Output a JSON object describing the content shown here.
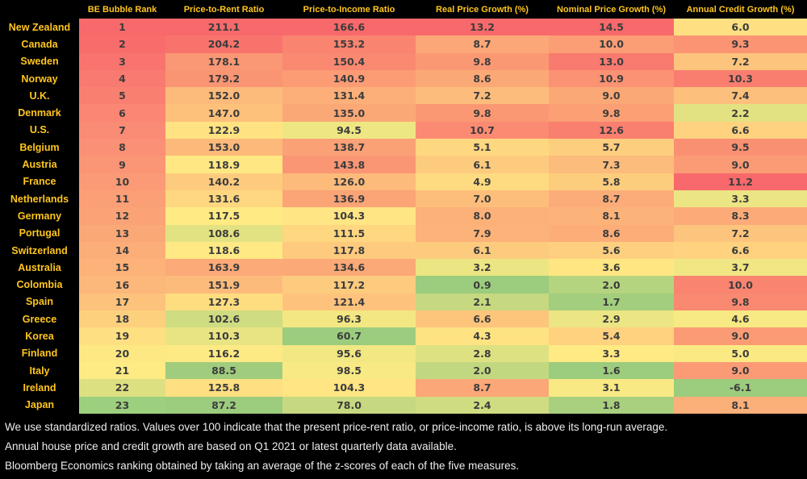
{
  "colors": {
    "background": "#000000",
    "label_yellow": "#FFC61E",
    "value_text": "#3C3C3C",
    "footer_text": "#EDEDED"
  },
  "chart_data": {
    "type": "heatmap",
    "title": "",
    "legend_position": "none",
    "grid": false,
    "columns": [
      "BE Bubble Rank",
      "Price-to-Rent Ratio",
      "Price-to-Income Ratio",
      "Real Price Growth (%)",
      "Nominal Price Growth (%)",
      "Annual Credit Growth (%)"
    ],
    "rows": [
      {
        "country": "New Zealand",
        "rank": 1,
        "values": [
          211.1,
          166.6,
          13.2,
          14.5,
          6.0
        ]
      },
      {
        "country": "Canada",
        "rank": 2,
        "values": [
          204.2,
          153.2,
          8.7,
          10.0,
          9.3
        ]
      },
      {
        "country": "Sweden",
        "rank": 3,
        "values": [
          178.1,
          150.4,
          9.8,
          13.0,
          7.2
        ]
      },
      {
        "country": "Norway",
        "rank": 4,
        "values": [
          179.2,
          140.9,
          8.6,
          10.9,
          10.3
        ]
      },
      {
        "country": "U.K.",
        "rank": 5,
        "values": [
          152.0,
          131.4,
          7.2,
          9.0,
          7.4
        ]
      },
      {
        "country": "Denmark",
        "rank": 6,
        "values": [
          147.0,
          135.0,
          9.8,
          9.8,
          2.2
        ]
      },
      {
        "country": "U.S.",
        "rank": 7,
        "values": [
          122.9,
          94.5,
          10.7,
          12.6,
          6.6
        ]
      },
      {
        "country": "Belgium",
        "rank": 8,
        "values": [
          153.0,
          138.7,
          5.1,
          5.7,
          9.5
        ]
      },
      {
        "country": "Austria",
        "rank": 9,
        "values": [
          118.9,
          143.8,
          6.1,
          7.3,
          9.0
        ]
      },
      {
        "country": "France",
        "rank": 10,
        "values": [
          140.2,
          126.0,
          4.9,
          5.8,
          11.2
        ]
      },
      {
        "country": "Netherlands",
        "rank": 11,
        "values": [
          131.6,
          136.9,
          7.0,
          8.7,
          3.3
        ]
      },
      {
        "country": "Germany",
        "rank": 12,
        "values": [
          117.5,
          104.3,
          8.0,
          8.1,
          8.3
        ]
      },
      {
        "country": "Portugal",
        "rank": 13,
        "values": [
          108.6,
          111.5,
          7.9,
          8.6,
          7.2
        ]
      },
      {
        "country": "Switzerland",
        "rank": 14,
        "values": [
          118.6,
          117.8,
          6.1,
          5.6,
          6.6
        ]
      },
      {
        "country": "Australia",
        "rank": 15,
        "values": [
          163.9,
          134.6,
          3.2,
          3.6,
          3.7
        ]
      },
      {
        "country": "Colombia",
        "rank": 16,
        "values": [
          151.9,
          117.2,
          0.9,
          2.0,
          10.0
        ]
      },
      {
        "country": "Spain",
        "rank": 17,
        "values": [
          127.3,
          121.4,
          2.1,
          1.7,
          9.8
        ]
      },
      {
        "country": "Greece",
        "rank": 18,
        "values": [
          102.6,
          96.3,
          6.6,
          2.9,
          4.6
        ]
      },
      {
        "country": "Korea",
        "rank": 19,
        "values": [
          110.3,
          60.7,
          4.3,
          5.4,
          9.0
        ]
      },
      {
        "country": "Finland",
        "rank": 20,
        "values": [
          116.2,
          95.6,
          2.8,
          3.3,
          5.0
        ]
      },
      {
        "country": "Italy",
        "rank": 21,
        "values": [
          88.5,
          98.5,
          2.0,
          1.6,
          9.0
        ]
      },
      {
        "country": "Ireland",
        "rank": 22,
        "values": [
          125.8,
          104.3,
          8.7,
          3.1,
          -6.1
        ]
      },
      {
        "country": "Japan",
        "rank": 23,
        "values": [
          87.2,
          78.0,
          2.4,
          1.8,
          8.1
        ]
      }
    ],
    "color_scale": {
      "applied": "per-column",
      "min_color": "#9CCC7D",
      "mid_color": "#FFEB84",
      "max_color": "#F8696B",
      "mid_percentile": 25
    },
    "rank_cell_colors": [
      "#F8696B",
      "#F86C6B",
      "#F9746E",
      "#F97A70",
      "#F98071",
      "#FA8673",
      "#FA8B74",
      "#FA9075",
      "#FA9576",
      "#FB9A76",
      "#FB9F77",
      "#FBA377",
      "#FBA877",
      "#FCAE78",
      "#FCB279",
      "#FCB77A",
      "#FDC27B",
      "#FDD07E",
      "#FEDF81",
      "#FEE883",
      "#FEEB84",
      "#DCE081",
      "#9DD07E"
    ]
  },
  "footnotes": [
    "We use standardized ratios. Values over 100 indicate that the present price-rent ratio, or price-income ratio, is above its long-run average.",
    "Annual house price and credit growth are based on Q1 2021 or latest quarterly data available.",
    "Bloomberg Economics ranking obtained by taking an average of the z-scores of each of the five measures."
  ]
}
